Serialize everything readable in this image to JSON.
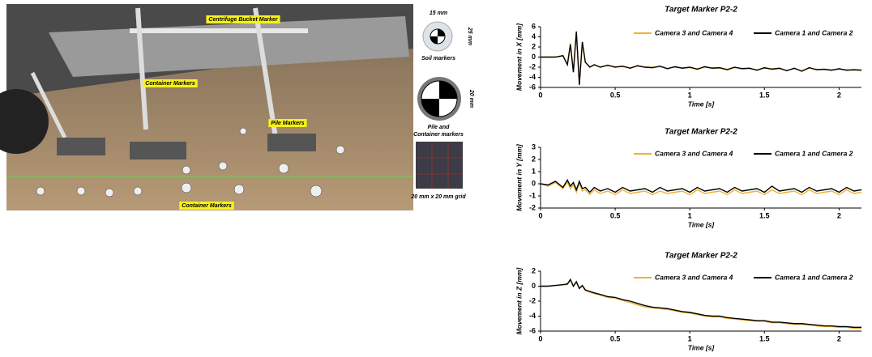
{
  "photo": {
    "annotations": [
      "Centrifuge Bucket Marker",
      "Container Markers",
      "Pile Markers",
      "Container Markers"
    ],
    "side": [
      "15 mm",
      "25 mm",
      "Soil markers",
      "20 mm",
      "Pile and Container markers",
      "20 mm x 20 mm grid"
    ]
  },
  "chart_data": [
    {
      "type": "line",
      "title": "Target Marker P2-2",
      "ylabel": "Movement in X [mm]",
      "xlabel": "Time [s]",
      "x": [
        0,
        0.05,
        0.1,
        0.15,
        0.18,
        0.2,
        0.22,
        0.24,
        0.26,
        0.28,
        0.3,
        0.33,
        0.36,
        0.4,
        0.45,
        0.5,
        0.55,
        0.6,
        0.65,
        0.7,
        0.75,
        0.8,
        0.85,
        0.9,
        0.95,
        1,
        1.05,
        1.1,
        1.15,
        1.2,
        1.25,
        1.3,
        1.35,
        1.4,
        1.45,
        1.5,
        1.55,
        1.6,
        1.65,
        1.7,
        1.75,
        1.8,
        1.85,
        1.9,
        1.95,
        2,
        2.05,
        2.1,
        2.15,
        2.2
      ],
      "series": [
        {
          "name": "Camera 3 and Camera 4",
          "color": "#f2b233",
          "values": [
            0,
            0,
            0,
            0.2,
            -1.4,
            2.7,
            -2.8,
            5.2,
            -5.2,
            2.8,
            -1.1,
            -1.9,
            -1.6,
            -1.9,
            -1.7,
            -1.9,
            -1.9,
            -2.1,
            -1.8,
            -2,
            -2,
            -1.9,
            -2.2,
            -2,
            -2.1,
            -2.1,
            -2.3,
            -2,
            -2.1,
            -2.2,
            -2.4,
            -2.1,
            -2.2,
            -2.3,
            -2.5,
            -2.2,
            -2.3,
            -2.3,
            -2.6,
            -2.3,
            -2.7,
            -2.2,
            -2.4,
            -2.5,
            -2.5,
            -2.4,
            -2.5,
            -2.6,
            -2.5,
            -2.7
          ]
        },
        {
          "name": "Camera 1 and Camera 2",
          "color": "#000000",
          "values": [
            0,
            0,
            0,
            0.3,
            -1.5,
            2.5,
            -3,
            5,
            -5.5,
            3,
            -1,
            -2,
            -1.5,
            -2,
            -1.6,
            -2,
            -1.8,
            -2.2,
            -1.7,
            -2,
            -2.1,
            -1.8,
            -2.3,
            -1.9,
            -2.2,
            -2,
            -2.4,
            -1.9,
            -2.2,
            -2.1,
            -2.5,
            -2,
            -2.3,
            -2.2,
            -2.6,
            -2.1,
            -2.4,
            -2.2,
            -2.7,
            -2.2,
            -2.8,
            -2.1,
            -2.5,
            -2.4,
            -2.6,
            -2.3,
            -2.6,
            -2.5,
            -2.6,
            -2.6
          ]
        }
      ],
      "xlim": [
        0,
        2.15
      ],
      "xticks": [
        0,
        0.5,
        1,
        1.5,
        2
      ],
      "ylim": [
        -6,
        6
      ],
      "yticks": [
        -6,
        -4,
        -2,
        0,
        2,
        4,
        6
      ],
      "legend": "top"
    },
    {
      "type": "line",
      "title": "Target Marker P2-2",
      "ylabel": "Movement in Y [mm]",
      "xlabel": "Time [s]",
      "x": [
        0,
        0.05,
        0.1,
        0.15,
        0.18,
        0.2,
        0.22,
        0.24,
        0.26,
        0.28,
        0.3,
        0.33,
        0.36,
        0.4,
        0.45,
        0.5,
        0.55,
        0.6,
        0.65,
        0.7,
        0.75,
        0.8,
        0.85,
        0.9,
        0.95,
        1,
        1.05,
        1.1,
        1.15,
        1.2,
        1.25,
        1.3,
        1.35,
        1.4,
        1.45,
        1.5,
        1.55,
        1.6,
        1.65,
        1.7,
        1.75,
        1.8,
        1.85,
        1.9,
        1.95,
        2,
        2.05,
        2.1,
        2.15,
        2.2
      ],
      "series": [
        {
          "name": "Camera 3 and Camera 4",
          "color": "#f2b233",
          "values": [
            0,
            -0.2,
            0.1,
            -0.4,
            0.1,
            -0.4,
            -0.1,
            -0.7,
            0,
            -0.6,
            -0.5,
            -0.9,
            -0.5,
            -0.8,
            -0.6,
            -0.9,
            -0.5,
            -0.8,
            -0.7,
            -0.6,
            -0.9,
            -0.6,
            -0.8,
            -0.7,
            -0.6,
            -0.9,
            -0.5,
            -0.8,
            -0.7,
            -0.6,
            -0.9,
            -0.5,
            -0.8,
            -0.7,
            -0.6,
            -0.9,
            -0.5,
            -0.8,
            -0.7,
            -0.6,
            -0.9,
            -0.5,
            -0.8,
            -0.7,
            -0.6,
            -0.9,
            -0.5,
            -0.8,
            -0.7,
            -0.8
          ]
        },
        {
          "name": "Camera 1 and Camera 2",
          "color": "#000000",
          "values": [
            0,
            -0.1,
            0.2,
            -0.3,
            0.3,
            -0.2,
            0.1,
            -0.5,
            0.2,
            -0.4,
            -0.3,
            -0.7,
            -0.3,
            -0.6,
            -0.4,
            -0.7,
            -0.3,
            -0.6,
            -0.5,
            -0.4,
            -0.7,
            -0.3,
            -0.6,
            -0.5,
            -0.4,
            -0.7,
            -0.3,
            -0.6,
            -0.5,
            -0.4,
            -0.7,
            -0.3,
            -0.6,
            -0.5,
            -0.4,
            -0.7,
            -0.2,
            -0.6,
            -0.5,
            -0.4,
            -0.7,
            -0.3,
            -0.6,
            -0.5,
            -0.4,
            -0.7,
            -0.3,
            -0.6,
            -0.5,
            -0.5
          ]
        }
      ],
      "xlim": [
        0,
        2.15
      ],
      "xticks": [
        0,
        0.5,
        1,
        1.5,
        2
      ],
      "ylim": [
        -2,
        3
      ],
      "yticks": [
        -2,
        -1,
        0,
        1,
        2,
        3
      ],
      "legend": "top"
    },
    {
      "type": "line",
      "title": "Target Marker P2-2",
      "ylabel": "Movement in Z [mm]",
      "xlabel": "Time [s]",
      "x": [
        0,
        0.05,
        0.1,
        0.15,
        0.18,
        0.2,
        0.22,
        0.24,
        0.26,
        0.28,
        0.3,
        0.33,
        0.36,
        0.4,
        0.45,
        0.5,
        0.55,
        0.6,
        0.65,
        0.7,
        0.75,
        0.8,
        0.85,
        0.9,
        0.95,
        1,
        1.05,
        1.1,
        1.15,
        1.2,
        1.25,
        1.3,
        1.35,
        1.4,
        1.45,
        1.5,
        1.55,
        1.6,
        1.65,
        1.7,
        1.75,
        1.8,
        1.85,
        1.9,
        1.95,
        2,
        2.05,
        2.1,
        2.15,
        2.2
      ],
      "series": [
        {
          "name": "Camera 3 and Camera 4",
          "color": "#f2b233",
          "values": [
            0,
            0,
            0.1,
            0.2,
            0.2,
            0.8,
            0,
            0.5,
            -0.3,
            0,
            -0.6,
            -0.8,
            -1,
            -1.2,
            -1.5,
            -1.6,
            -1.9,
            -2.2,
            -2.5,
            -2.8,
            -2.9,
            -3,
            -3.1,
            -3.3,
            -3.5,
            -3.6,
            -3.8,
            -4,
            -4.1,
            -4.1,
            -4.3,
            -4.4,
            -4.5,
            -4.6,
            -4.7,
            -4.7,
            -4.9,
            -4.9,
            -5,
            -5.1,
            -5.1,
            -5.2,
            -5.3,
            -5.4,
            -5.4,
            -5.5,
            -5.5,
            -5.6,
            -5.6,
            -5.6
          ]
        },
        {
          "name": "Camera 1 and Camera 2",
          "color": "#000000",
          "values": [
            0,
            0,
            0.1,
            0.2,
            0.3,
            0.9,
            0,
            0.6,
            -0.3,
            0.1,
            -0.5,
            -0.7,
            -0.9,
            -1.1,
            -1.4,
            -1.5,
            -1.8,
            -2,
            -2.3,
            -2.6,
            -2.8,
            -2.9,
            -3,
            -3.2,
            -3.4,
            -3.5,
            -3.7,
            -3.9,
            -4,
            -4,
            -4.2,
            -4.3,
            -4.4,
            -4.5,
            -4.6,
            -4.6,
            -4.8,
            -4.8,
            -4.9,
            -5,
            -5,
            -5.1,
            -5.2,
            -5.3,
            -5.3,
            -5.4,
            -5.4,
            -5.5,
            -5.5,
            -5.5
          ]
        }
      ],
      "xlim": [
        0,
        2.15
      ],
      "xticks": [
        0,
        0.5,
        1,
        1.5,
        2
      ],
      "ylim": [
        -6,
        2
      ],
      "yticks": [
        -6,
        -4,
        -2,
        0,
        2
      ],
      "legend": "top"
    }
  ]
}
